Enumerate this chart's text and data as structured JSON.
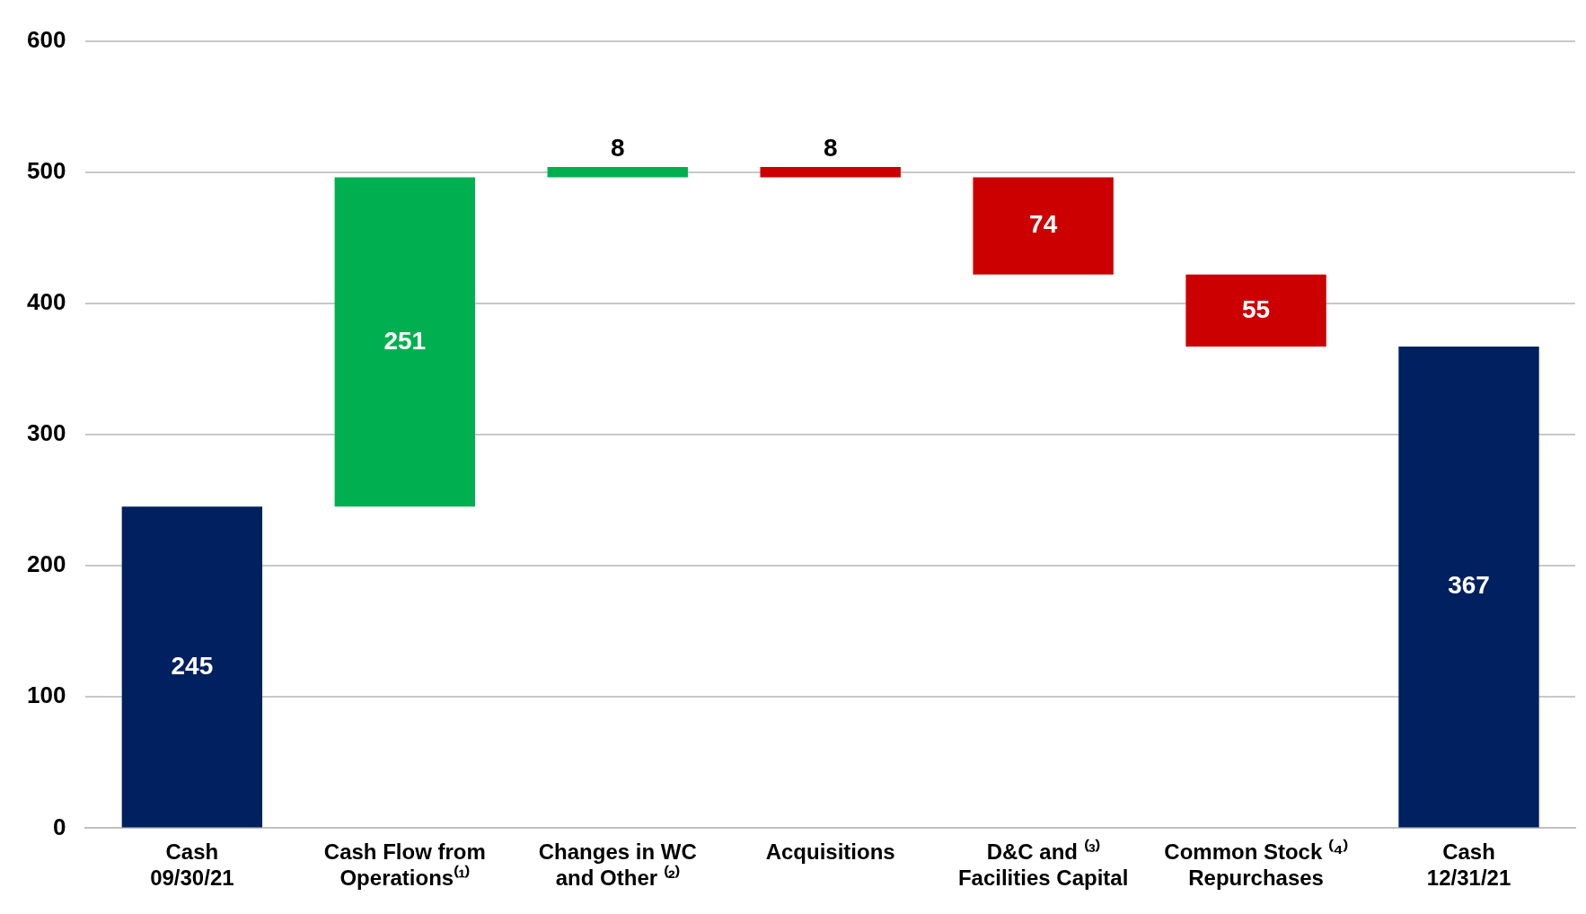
{
  "chart_data": {
    "type": "bar",
    "categories": [
      "Cash\n09/30/21",
      "Cash Flow from\nOperations⁽¹⁾",
      "Changes in WC\nand Other ⁽²⁾",
      "Acquisitions",
      "D&C and ⁽³⁾\nFacilities Capital",
      "Common Stock ⁽⁴⁾\nRepurchases",
      "Cash\n12/31/21"
    ],
    "values": [
      245,
      251,
      8,
      -8,
      -74,
      -55,
      367
    ],
    "base": [
      0,
      245,
      496,
      504,
      496,
      422,
      0
    ],
    "value_labels": [
      "245",
      "251",
      "8",
      "8",
      "74",
      "55",
      "367"
    ],
    "colors": [
      "#002060",
      "#00b050",
      "#00b050",
      "#cc0000",
      "#cc0000",
      "#cc0000",
      "#002060"
    ],
    "ylim": [
      0,
      600
    ],
    "yticks": [
      0,
      100,
      200,
      300,
      400,
      500,
      600
    ],
    "grid": "y",
    "legend": false
  }
}
